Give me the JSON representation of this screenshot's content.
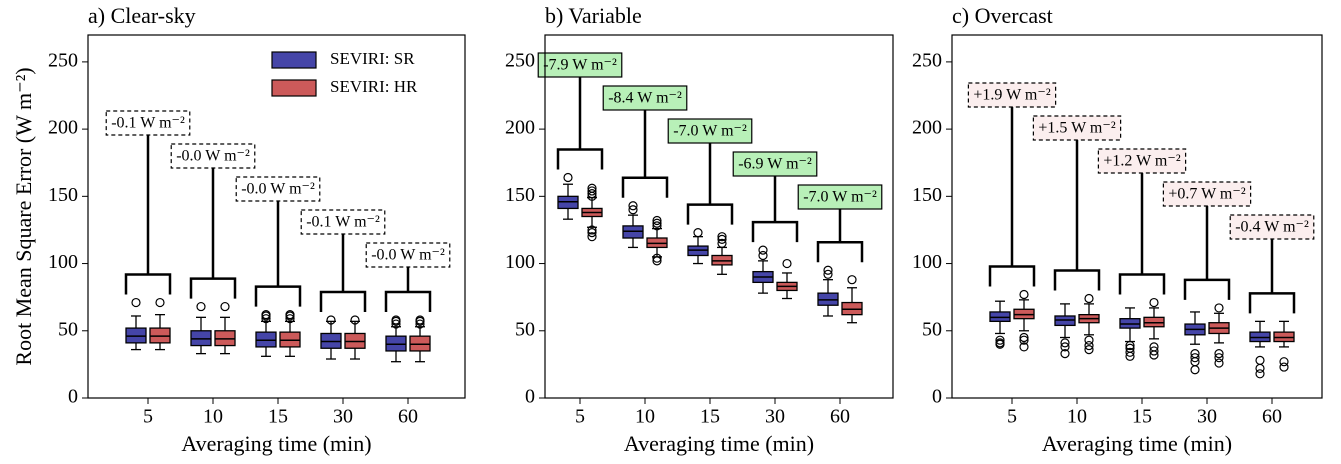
{
  "chart_data": [
    {
      "type": "box",
      "title": "a) Clear-sky",
      "xlabel": "Averaging time (min)",
      "ylabel": "Root Mean Square Error (W m⁻²)",
      "categories": [
        "5",
        "10",
        "15",
        "30",
        "60"
      ],
      "ylim": [
        0,
        270
      ],
      "yticks": [
        0,
        50,
        100,
        150,
        200,
        250
      ],
      "legend": "upper right",
      "annotations": [
        "-0.1 W m⁻²",
        "-0.0 W m⁻²",
        "-0.0 W m⁻²",
        "-0.1 W m⁻²",
        "-0.0 W m⁻²"
      ],
      "annotation_fill": "#ffffff",
      "annotation_border": "dashed",
      "series": [
        {
          "name": "SEVIRI: SR",
          "color": "#4545a8",
          "boxes": [
            {
              "whislo": 36,
              "q1": 41,
              "med": 46,
              "q3": 52,
              "whishi": 61,
              "fliers": [
                71
              ]
            },
            {
              "whislo": 33,
              "q1": 39,
              "med": 44,
              "q3": 50,
              "whishi": 60,
              "fliers": [
                68
              ]
            },
            {
              "whislo": 31,
              "q1": 38,
              "med": 43,
              "q3": 49,
              "whishi": 57,
              "fliers": [
                59,
                61,
                62
              ]
            },
            {
              "whislo": 29,
              "q1": 37,
              "med": 42,
              "q3": 48,
              "whishi": 57,
              "fliers": [
                58
              ]
            },
            {
              "whislo": 27,
              "q1": 35,
              "med": 40,
              "q3": 46,
              "whishi": 53,
              "fliers": [
                55,
                57,
                58
              ]
            }
          ]
        },
        {
          "name": "SEVIRI: HR",
          "color": "#cc5a5a",
          "boxes": [
            {
              "whislo": 36,
              "q1": 41,
              "med": 46,
              "q3": 52,
              "whishi": 62,
              "fliers": [
                71
              ]
            },
            {
              "whislo": 33,
              "q1": 39,
              "med": 44,
              "q3": 50,
              "whishi": 60,
              "fliers": [
                68
              ]
            },
            {
              "whislo": 31,
              "q1": 38,
              "med": 43,
              "q3": 49,
              "whishi": 57,
              "fliers": [
                59,
                61,
                62
              ]
            },
            {
              "whislo": 29,
              "q1": 37,
              "med": 42,
              "q3": 48,
              "whishi": 57,
              "fliers": [
                58
              ]
            },
            {
              "whislo": 27,
              "q1": 35,
              "med": 40,
              "q3": 46,
              "whishi": 53,
              "fliers": [
                55,
                57,
                58
              ]
            }
          ]
        }
      ]
    },
    {
      "type": "box",
      "title": "b) Variable",
      "xlabel": "Averaging time (min)",
      "categories": [
        "5",
        "10",
        "15",
        "30",
        "60"
      ],
      "ylim": [
        0,
        270
      ],
      "yticks": [
        0,
        50,
        100,
        150,
        200,
        250
      ],
      "annotations": [
        "-7.9 W m⁻²",
        "-8.4 W m⁻²",
        "-7.0 W m⁻²",
        "-6.9 W m⁻²",
        "-7.0 W m⁻²"
      ],
      "annotation_fill": "#b8f0b8",
      "annotation_border": "solid",
      "series": [
        {
          "color": "#4545a8",
          "boxes": [
            {
              "whislo": 133,
              "q1": 141,
              "med": 146,
              "q3": 150,
              "whishi": 159,
              "fliers": [
                164
              ]
            },
            {
              "whislo": 112,
              "q1": 119,
              "med": 124,
              "q3": 128,
              "whishi": 136,
              "fliers": [
                140,
                143
              ]
            },
            {
              "whislo": 100,
              "q1": 106,
              "med": 110,
              "q3": 113,
              "whishi": 120,
              "fliers": [
                123
              ]
            },
            {
              "whislo": 78,
              "q1": 86,
              "med": 90,
              "q3": 94,
              "whishi": 102,
              "fliers": [
                106,
                110
              ]
            },
            {
              "whislo": 61,
              "q1": 69,
              "med": 73,
              "q3": 78,
              "whishi": 88,
              "fliers": [
                92,
                95
              ]
            }
          ]
        },
        {
          "color": "#cc5a5a",
          "boxes": [
            {
              "whislo": 127,
              "q1": 135,
              "med": 138,
              "q3": 141,
              "whishi": 149,
              "fliers": [
                120,
                123,
                125,
                150,
                152,
                154,
                156
              ]
            },
            {
              "whislo": 105,
              "q1": 112,
              "med": 115,
              "q3": 119,
              "whishi": 126,
              "fliers": [
                102,
                104,
                128,
                130,
                132
              ]
            },
            {
              "whislo": 92,
              "q1": 99,
              "med": 102,
              "q3": 106,
              "whishi": 112,
              "fliers": [
                115,
                118,
                120
              ]
            },
            {
              "whislo": 74,
              "q1": 80,
              "med": 83,
              "q3": 86,
              "whishi": 93,
              "fliers": [
                100
              ]
            },
            {
              "whislo": 56,
              "q1": 62,
              "med": 66,
              "q3": 71,
              "whishi": 82,
              "fliers": [
                88
              ]
            }
          ]
        }
      ]
    },
    {
      "type": "box",
      "title": "c) Overcast",
      "xlabel": "Averaging time (min)",
      "categories": [
        "5",
        "10",
        "15",
        "30",
        "60"
      ],
      "ylim": [
        0,
        270
      ],
      "yticks": [
        0,
        50,
        100,
        150,
        200,
        250
      ],
      "annotations": [
        "+1.9 W m⁻²",
        "+1.5 W m⁻²",
        "+1.2 W m⁻²",
        "+0.7 W m⁻²",
        "-0.4 W m⁻²"
      ],
      "annotation_fill": "#fbeeee",
      "annotation_border": "dashed",
      "series": [
        {
          "color": "#4545a8",
          "boxes": [
            {
              "whislo": 48,
              "q1": 57,
              "med": 60,
              "q3": 64,
              "whishi": 72,
              "fliers": [
                40,
                41,
                43
              ]
            },
            {
              "whislo": 45,
              "q1": 54,
              "med": 58,
              "q3": 61,
              "whishi": 70,
              "fliers": [
                33,
                38,
                41
              ]
            },
            {
              "whislo": 42,
              "q1": 52,
              "med": 55,
              "q3": 59,
              "whishi": 67,
              "fliers": [
                31,
                34,
                37,
                39
              ]
            },
            {
              "whislo": 40,
              "q1": 47,
              "med": 51,
              "q3": 55,
              "whishi": 64,
              "fliers": [
                21,
                27,
                30,
                33
              ]
            },
            {
              "whislo": 38,
              "q1": 42,
              "med": 45,
              "q3": 49,
              "whishi": 57,
              "fliers": [
                18,
                22,
                28
              ]
            }
          ]
        },
        {
          "color": "#cc5a5a",
          "boxes": [
            {
              "whislo": 50,
              "q1": 59,
              "med": 62,
              "q3": 66,
              "whishi": 73,
              "fliers": [
                77,
                45,
                38,
                43
              ]
            },
            {
              "whislo": 47,
              "q1": 56,
              "med": 59,
              "q3": 62,
              "whishi": 70,
              "fliers": [
                74,
                36,
                39,
                43
              ]
            },
            {
              "whislo": 44,
              "q1": 53,
              "med": 56,
              "q3": 60,
              "whishi": 67,
              "fliers": [
                71,
                32,
                35,
                38
              ]
            },
            {
              "whislo": 41,
              "q1": 48,
              "med": 52,
              "q3": 56,
              "whishi": 63,
              "fliers": [
                67,
                26,
                30,
                33
              ]
            },
            {
              "whislo": 38,
              "q1": 42,
              "med": 45,
              "q3": 49,
              "whishi": 57,
              "fliers": [
                23,
                27
              ]
            }
          ]
        }
      ]
    }
  ]
}
